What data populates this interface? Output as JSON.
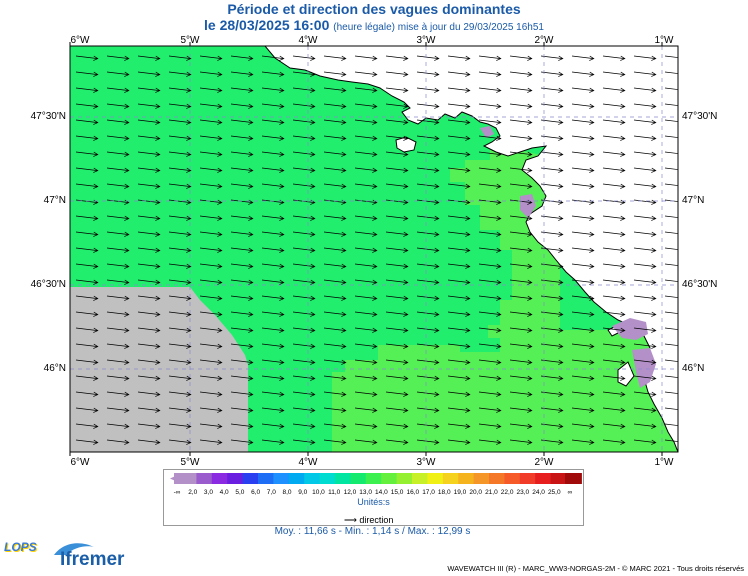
{
  "title": "Période et direction des vagues dominantes",
  "date_line": "le 28/03/2025 16:00",
  "update_note": "(heure légale) mise à jour du 29/03/2025 16h51",
  "lon_labels": [
    "6°W",
    "5°W",
    "4°W",
    "3°W",
    "2°W",
    "1°W"
  ],
  "lat_labels": [
    "47°30'N",
    "47°N",
    "46°30'N",
    "46°N"
  ],
  "colorbar": {
    "labels": [
      "-∞",
      "2,0",
      "3,0",
      "4,0",
      "5,0",
      "6,0",
      "7,0",
      "8,0",
      "9,0",
      "10,0",
      "11,0",
      "12,0",
      "13,0",
      "14,0",
      "15,0",
      "16,0",
      "17,0",
      "18,0",
      "19,0",
      "20,0",
      "21,0",
      "22,0",
      "23,0",
      "24,0",
      "25,0",
      "∞"
    ],
    "colors": [
      "#b490c8",
      "#9a5ccc",
      "#8a2be2",
      "#6a1fe0",
      "#2a3ff0",
      "#1e6ef5",
      "#1e90ff",
      "#00aaf0",
      "#00c8e6",
      "#00dcd0",
      "#00e6a0",
      "#14eb6e",
      "#3cf050",
      "#64f03c",
      "#96f032",
      "#c8f028",
      "#f0f014",
      "#f5d21e",
      "#f5b41e",
      "#f59628",
      "#f57828",
      "#f55a28",
      "#f03c28",
      "#e61e1e",
      "#c81414",
      "#a00a0a"
    ],
    "unit": "Unités:s"
  },
  "direction_label": "direction",
  "stats": "Moy. : 11,66 s   -   Min. : 1,14 s / Max. : 12,99 s",
  "credit": "WAVEWATCH III (R) - MARC_WW3-NORGAS-2M - © MARC 2021 - Tous droits réservés",
  "logos": {
    "lops": "LOPS",
    "ifremer": "Ifremer"
  },
  "map_colors": {
    "sea_dominant": "#22ee6e",
    "sea_light": "#55f055",
    "land": "#ffffff",
    "no_data": "#c0c0c0",
    "short_period": "#b490c8"
  }
}
